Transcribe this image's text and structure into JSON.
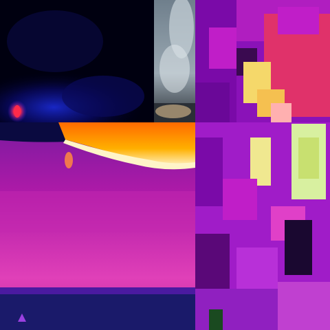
{
  "mosaic": {
    "tiles": [
      {
        "id": "top-left",
        "subject": "thermal-night-scene",
        "palette": [
          "#000010",
          "#0a0a6e",
          "#1b2bd8",
          "#ff2a4a"
        ]
      },
      {
        "id": "top-middle",
        "subject": "smoke-plume",
        "palette": [
          "#6f7f8c",
          "#c4cfd6",
          "#2a2f36",
          "#b39c7a"
        ]
      },
      {
        "id": "right",
        "subject": "pixelated-thermal-closeup",
        "palette": [
          "#7a0aa8",
          "#c01ec8",
          "#ff3a6a",
          "#f5d86a",
          "#d8f0a0",
          "#1a0830"
        ]
      },
      {
        "id": "bottom-left",
        "subject": "thermal-wildfire-hillside",
        "palette": [
          "#0a0a40",
          "#b01aa8",
          "#ff6a00",
          "#fff4c8",
          "#1a1a6a"
        ]
      }
    ]
  }
}
